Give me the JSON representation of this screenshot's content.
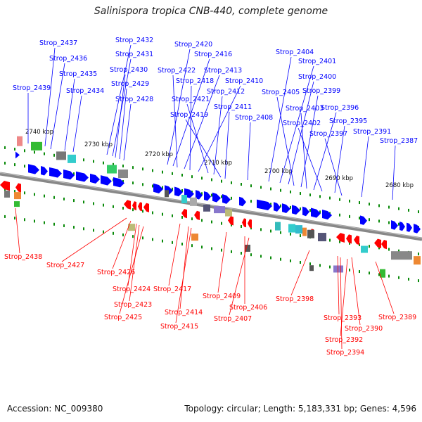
{
  "title": "Salinispora tropica CNB-440, complete genome",
  "footer": {
    "accession": "Accession: NC_009380",
    "stats": "Topology: circular; Length: 5,183,331 bp; Genes: 4,596"
  },
  "colors": {
    "forward": "#0000ff",
    "reverse": "#ff0000",
    "backbone": "#888888",
    "tick": "#0a8a0a"
  },
  "kbp_labels": [
    "2740 kbp",
    "2730 kbp",
    "2720 kbp",
    "2710 kbp",
    "2700 kbp",
    "2690 kbp",
    "2680 kbp"
  ],
  "forward_genes": [
    "Strop_2437",
    "Strop_2436",
    "Strop_2435",
    "Strop_2439",
    "Strop_2434",
    "Strop_2432",
    "Strop_2431",
    "Strop_2430",
    "Strop_2429",
    "Strop_2428",
    "Strop_2420",
    "Strop_2416",
    "Strop_2422",
    "Strop_2413",
    "Strop_2418",
    "Strop_2410",
    "Strop_2421",
    "Strop_2412",
    "Strop_2419",
    "Strop_2411",
    "Strop_2408",
    "Strop_2404",
    "Strop_2401",
    "Strop_2400",
    "Strop_2405",
    "Strop_2399",
    "Strop_2403",
    "Strop_2396",
    "Strop_2402",
    "Strop_2395",
    "Strop_2397",
    "Strop_2391",
    "Strop_2387"
  ],
  "reverse_genes": [
    "Strop_2438",
    "Strop_2427",
    "Strop_2426",
    "Strop_2424",
    "Strop_2423",
    "Strop_2425",
    "Strop_2417",
    "Strop_2414",
    "Strop_2415",
    "Strop_2409",
    "Strop_2406",
    "Strop_2407",
    "Strop_2398",
    "Strop_2393",
    "Strop_2390",
    "Strop_2392",
    "Strop_2394",
    "Strop_2389"
  ]
}
